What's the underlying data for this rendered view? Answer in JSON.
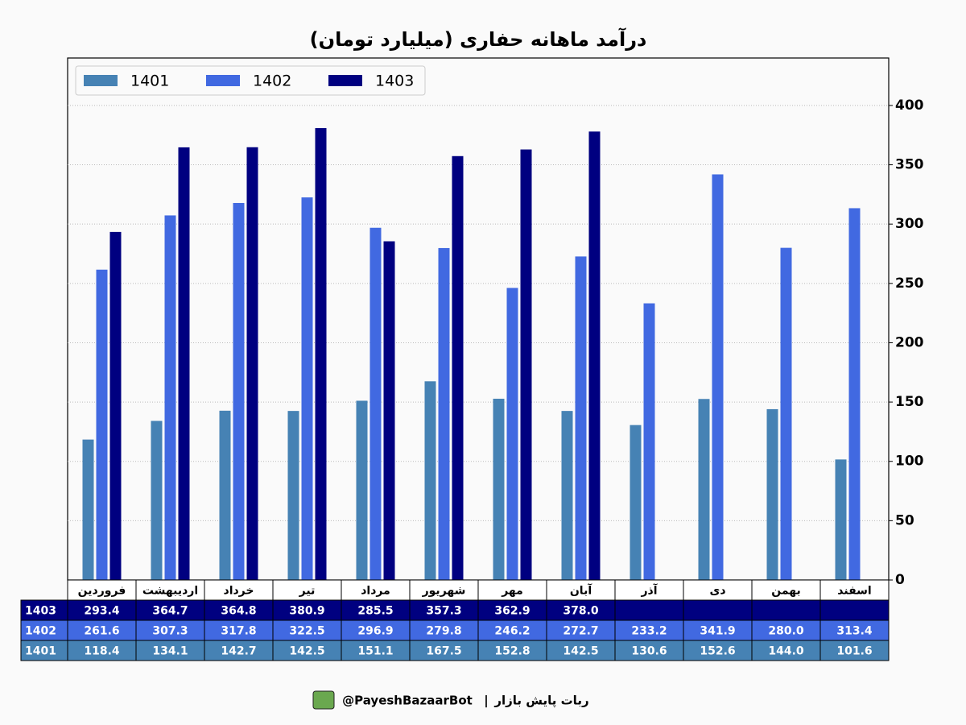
{
  "chart_data": {
    "type": "bar",
    "title": "درآمد ماهانه حفاری (میلیارد تومان)",
    "categories": [
      "فروردین",
      "اردیبهشت",
      "خرداد",
      "تیر",
      "مرداد",
      "شهریور",
      "مهر",
      "آبان",
      "آذر",
      "دی",
      "بهمن",
      "اسفند"
    ],
    "series": [
      {
        "name": "1401",
        "color": "#4682b4",
        "values": [
          118.4,
          134.1,
          142.7,
          142.5,
          151.1,
          167.5,
          152.8,
          142.5,
          130.6,
          152.6,
          144.0,
          101.6
        ],
        "value_labels": [
          "118.4",
          "134.1",
          "142.7",
          "142.5",
          "151.1",
          "167.5",
          "152.8",
          "142.5",
          "130.6",
          "152.6",
          "144.0",
          "101.6"
        ]
      },
      {
        "name": "1402",
        "color": "#4169e1",
        "values": [
          261.6,
          307.3,
          317.8,
          322.5,
          296.9,
          279.8,
          246.2,
          272.7,
          233.2,
          341.9,
          280.0,
          313.4
        ],
        "value_labels": [
          "261.6",
          "307.3",
          "317.8",
          "322.5",
          "296.9",
          "279.8",
          "246.2",
          "272.7",
          "233.2",
          "341.9",
          "280.0",
          "313.4"
        ]
      },
      {
        "name": "1403",
        "color": "#000080",
        "values": [
          293.4,
          364.7,
          364.8,
          380.9,
          285.5,
          357.3,
          362.9,
          378.0,
          null,
          null,
          null,
          null
        ],
        "value_labels": [
          "293.4",
          "364.7",
          "364.8",
          "380.9",
          "285.5",
          "357.3",
          "362.9",
          "378.0",
          null,
          null,
          null,
          null
        ]
      }
    ],
    "ylim": [
      0,
      440
    ],
    "yticks": [
      0,
      50,
      100,
      150,
      200,
      250,
      300,
      350,
      400
    ],
    "grid": true,
    "legend": "upper left"
  },
  "footer": {
    "bot_name": "ربات پایش بازار",
    "separator": "|",
    "handle": "@PayeshBazaarBot"
  }
}
